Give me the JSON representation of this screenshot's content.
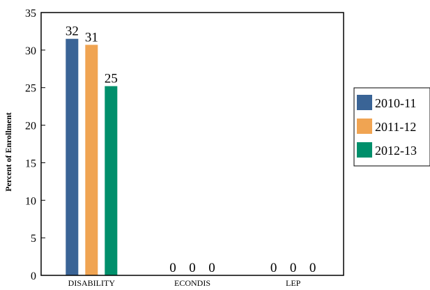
{
  "chart_data": {
    "type": "bar",
    "title": "",
    "xlabel": "",
    "ylabel": "Percent of Enrollment",
    "categories": [
      "DISABILITY",
      "ECONDIS",
      "LEP"
    ],
    "series": [
      {
        "name": "2010-11",
        "color": "#3a6496",
        "values": [
          31.5,
          0,
          0
        ],
        "labels": [
          "32",
          "0",
          "0"
        ]
      },
      {
        "name": "2011-12",
        "color": "#f0a452",
        "values": [
          30.7,
          0,
          0
        ],
        "labels": [
          "31",
          "0",
          "0"
        ]
      },
      {
        "name": "2012-13",
        "color": "#008f6b",
        "values": [
          25.2,
          0,
          0
        ],
        "labels": [
          "25",
          "0",
          "0"
        ]
      }
    ],
    "ylim": [
      0,
      35
    ],
    "yticks": [
      0,
      5,
      10,
      15,
      20,
      25,
      30,
      35
    ],
    "grid": false,
    "legend_position": "right"
  }
}
